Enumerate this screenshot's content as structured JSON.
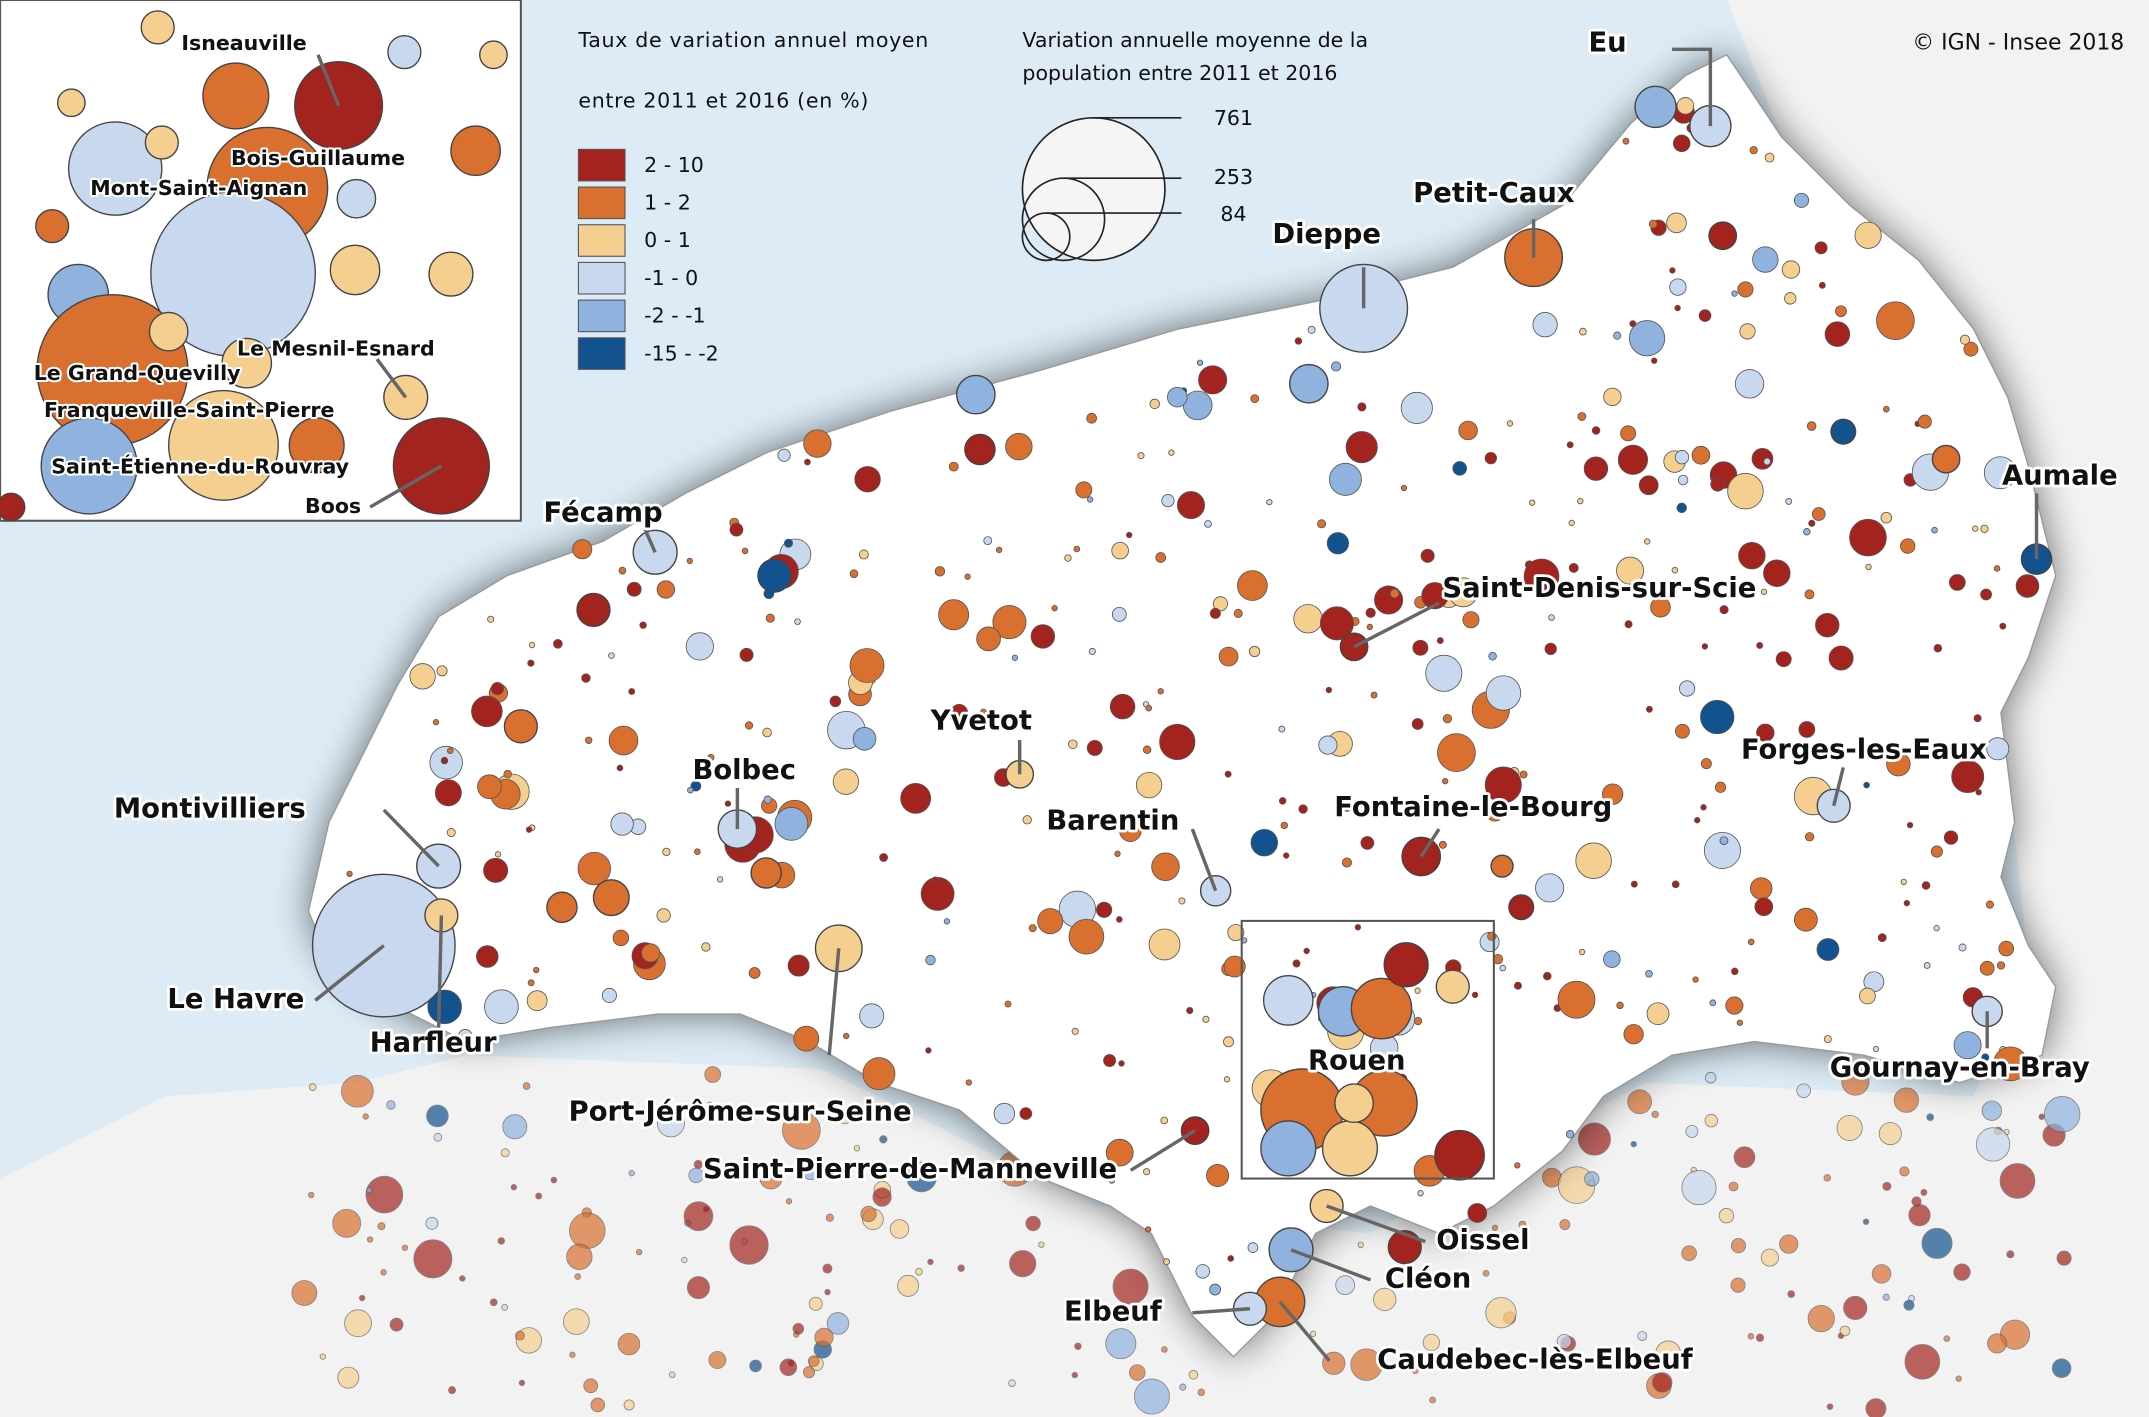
{
  "header": {
    "copyright": "© IGN - Insee 2018"
  },
  "color_legend": {
    "title_lines": [
      "Taux de variation annuel moyen",
      "entre 2011 et 2016 (en %)"
    ],
    "classes": [
      {
        "label": "2 - 10",
        "color": "#a3231f"
      },
      {
        "label": "1 - 2",
        "color": "#d9702f"
      },
      {
        "label": "0 - 1",
        "color": "#f5cf8f"
      },
      {
        "label": "-1 - 0",
        "color": "#c7d8ef"
      },
      {
        "label": "-2 - -1",
        "color": "#8fb2df"
      },
      {
        "label": "-15 - -2",
        "color": "#12528e"
      }
    ]
  },
  "size_legend": {
    "title_lines": [
      "Variation annuelle moyenne de la",
      "population entre 2011 et 2016"
    ],
    "values": [
      761,
      253,
      84
    ]
  },
  "places": [
    "Eu",
    "Petit-Caux",
    "Dieppe",
    "Aumale",
    "Fécamp",
    "Saint-Denis-sur-Scie",
    "Yvetot",
    "Bolbec",
    "Montivilliers",
    "Forges-les-Eaux",
    "Fontaine-le-Bourg",
    "Barentin",
    "Le Havre",
    "Harfleur",
    "Rouen",
    "Gournay-en-Bray",
    "Port-Jérôme-sur-Seine",
    "Saint-Pierre-de-Manneville",
    "Oissel",
    "Cléon",
    "Elbeuf",
    "Caudebec-lès-Elbeuf"
  ],
  "inset": {
    "places": [
      "Isneauville",
      "Bois-Guillaume",
      "Mont-Saint-Aignan",
      "Le Mesnil-Esnard",
      "Le Grand-Quevilly",
      "Franqueville-Saint-Pierre",
      "Saint-Étienne-du-Rouvray",
      "Boos"
    ]
  }
}
